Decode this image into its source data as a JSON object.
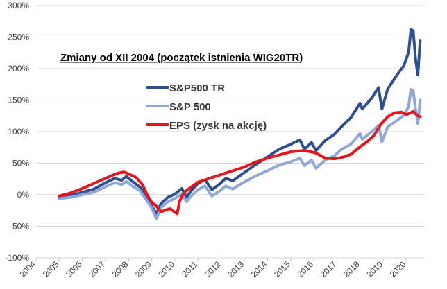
{
  "chart_data": {
    "type": "line",
    "title": "Zmiany od XII 2004 (początek istnienia WIG20TR)",
    "xlabel": "",
    "ylabel": "",
    "xlim": [
      2004,
      2020.8
    ],
    "ylim": [
      -100,
      300
    ],
    "x_ticks": [
      "2004",
      "2005",
      "2006",
      "2007",
      "2008",
      "2009",
      "2010",
      "2011",
      "2012",
      "2013",
      "2014",
      "2015",
      "2016",
      "2017",
      "2018",
      "2019",
      "2020"
    ],
    "y_ticks": [
      {
        "value": -100,
        "label": "-100%"
      },
      {
        "value": -50,
        "label": "-50%"
      },
      {
        "value": 0,
        "label": "0%"
      },
      {
        "value": 50,
        "label": "50%"
      },
      {
        "value": 100,
        "label": "100%"
      },
      {
        "value": 150,
        "label": "150%"
      },
      {
        "value": 200,
        "label": "200%"
      },
      {
        "value": 250,
        "label": "250%"
      },
      {
        "value": 300,
        "label": "300%"
      }
    ],
    "grid": true,
    "legend_position": "top-left",
    "series": [
      {
        "name": "S&P500 TR",
        "color": "#2f4f91",
        "points": [
          [
            2005.0,
            -4
          ],
          [
            2005.5,
            -1
          ],
          [
            2006.0,
            4
          ],
          [
            2006.5,
            9
          ],
          [
            2007.0,
            19
          ],
          [
            2007.4,
            26
          ],
          [
            2007.7,
            23
          ],
          [
            2007.9,
            29
          ],
          [
            2008.2,
            20
          ],
          [
            2008.5,
            12
          ],
          [
            2008.8,
            -5
          ],
          [
            2009.0,
            -18
          ],
          [
            2009.2,
            -30
          ],
          [
            2009.4,
            -14
          ],
          [
            2009.7,
            -4
          ],
          [
            2010.0,
            1
          ],
          [
            2010.3,
            10
          ],
          [
            2010.5,
            -4
          ],
          [
            2010.7,
            6
          ],
          [
            2011.0,
            18
          ],
          [
            2011.3,
            24
          ],
          [
            2011.6,
            8
          ],
          [
            2011.9,
            16
          ],
          [
            2012.2,
            26
          ],
          [
            2012.5,
            22
          ],
          [
            2012.8,
            30
          ],
          [
            2013.0,
            35
          ],
          [
            2013.5,
            48
          ],
          [
            2014.0,
            60
          ],
          [
            2014.5,
            72
          ],
          [
            2015.0,
            80
          ],
          [
            2015.4,
            87
          ],
          [
            2015.6,
            72
          ],
          [
            2015.9,
            83
          ],
          [
            2016.1,
            70
          ],
          [
            2016.5,
            86
          ],
          [
            2016.9,
            96
          ],
          [
            2017.2,
            108
          ],
          [
            2017.6,
            122
          ],
          [
            2018.0,
            145
          ],
          [
            2018.1,
            136
          ],
          [
            2018.5,
            153
          ],
          [
            2018.8,
            170
          ],
          [
            2018.95,
            136
          ],
          [
            2019.2,
            168
          ],
          [
            2019.6,
            190
          ],
          [
            2019.9,
            205
          ],
          [
            2020.1,
            226
          ],
          [
            2020.2,
            262
          ],
          [
            2020.3,
            260
          ],
          [
            2020.4,
            215
          ],
          [
            2020.5,
            190
          ],
          [
            2020.6,
            245
          ]
        ]
      },
      {
        "name": "S&P 500",
        "color": "#8fa8d8",
        "points": [
          [
            2005.0,
            -6
          ],
          [
            2005.5,
            -4
          ],
          [
            2006.0,
            0
          ],
          [
            2006.5,
            4
          ],
          [
            2007.0,
            13
          ],
          [
            2007.4,
            19
          ],
          [
            2007.7,
            16
          ],
          [
            2007.9,
            21
          ],
          [
            2008.2,
            13
          ],
          [
            2008.5,
            6
          ],
          [
            2008.8,
            -10
          ],
          [
            2009.0,
            -21
          ],
          [
            2009.2,
            -38
          ],
          [
            2009.4,
            -20
          ],
          [
            2009.7,
            -11
          ],
          [
            2010.0,
            -6
          ],
          [
            2010.3,
            2
          ],
          [
            2010.5,
            -11
          ],
          [
            2010.7,
            -2
          ],
          [
            2011.0,
            8
          ],
          [
            2011.3,
            14
          ],
          [
            2011.6,
            -2
          ],
          [
            2011.9,
            5
          ],
          [
            2012.2,
            14
          ],
          [
            2012.5,
            9
          ],
          [
            2012.8,
            16
          ],
          [
            2013.0,
            20
          ],
          [
            2013.5,
            30
          ],
          [
            2014.0,
            38
          ],
          [
            2014.5,
            47
          ],
          [
            2015.0,
            52
          ],
          [
            2015.4,
            58
          ],
          [
            2015.6,
            46
          ],
          [
            2015.9,
            55
          ],
          [
            2016.1,
            42
          ],
          [
            2016.5,
            55
          ],
          [
            2016.9,
            62
          ],
          [
            2017.2,
            72
          ],
          [
            2017.6,
            80
          ],
          [
            2018.0,
            97
          ],
          [
            2018.1,
            88
          ],
          [
            2018.5,
            100
          ],
          [
            2018.8,
            110
          ],
          [
            2018.95,
            84
          ],
          [
            2019.2,
            108
          ],
          [
            2019.6,
            118
          ],
          [
            2019.9,
            126
          ],
          [
            2020.1,
            140
          ],
          [
            2020.2,
            167
          ],
          [
            2020.3,
            165
          ],
          [
            2020.4,
            135
          ],
          [
            2020.5,
            113
          ],
          [
            2020.6,
            150
          ]
        ]
      },
      {
        "name": "EPS (zysk na akcję)",
        "color": "#e8141c",
        "points": [
          [
            2005.0,
            -2
          ],
          [
            2005.5,
            3
          ],
          [
            2006.0,
            10
          ],
          [
            2006.5,
            18
          ],
          [
            2007.0,
            26
          ],
          [
            2007.5,
            34
          ],
          [
            2007.8,
            36
          ],
          [
            2008.0,
            33
          ],
          [
            2008.3,
            28
          ],
          [
            2008.6,
            16
          ],
          [
            2008.8,
            0
          ],
          [
            2009.0,
            -12
          ],
          [
            2009.2,
            -18
          ],
          [
            2009.4,
            -27
          ],
          [
            2009.6,
            -24
          ],
          [
            2009.8,
            -22
          ],
          [
            2010.0,
            -28
          ],
          [
            2010.1,
            -30
          ],
          [
            2010.2,
            -10
          ],
          [
            2010.4,
            4
          ],
          [
            2010.7,
            12
          ],
          [
            2011.0,
            20
          ],
          [
            2011.5,
            26
          ],
          [
            2012.0,
            32
          ],
          [
            2012.5,
            38
          ],
          [
            2013.0,
            44
          ],
          [
            2013.5,
            52
          ],
          [
            2014.0,
            58
          ],
          [
            2014.5,
            63
          ],
          [
            2015.0,
            68
          ],
          [
            2015.5,
            70
          ],
          [
            2015.9,
            68
          ],
          [
            2016.1,
            66
          ],
          [
            2016.5,
            58
          ],
          [
            2016.9,
            57
          ],
          [
            2017.3,
            60
          ],
          [
            2017.6,
            64
          ],
          [
            2018.0,
            76
          ],
          [
            2018.3,
            84
          ],
          [
            2018.6,
            94
          ],
          [
            2018.9,
            112
          ],
          [
            2019.2,
            124
          ],
          [
            2019.5,
            130
          ],
          [
            2019.8,
            131
          ],
          [
            2020.0,
            127
          ],
          [
            2020.3,
            132
          ],
          [
            2020.5,
            125
          ],
          [
            2020.6,
            124
          ]
        ]
      }
    ]
  }
}
